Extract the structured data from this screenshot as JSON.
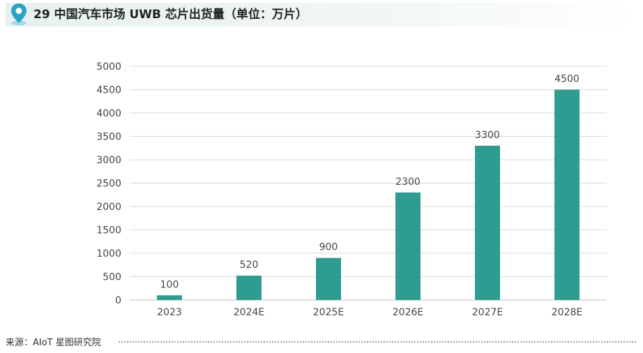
{
  "header": {
    "title": "29 中国汽车市场 UWB 芯片出货量（单位：万片）",
    "accent_color": "#2aa3c8",
    "icon": "location-pin-icon"
  },
  "chart_data": {
    "type": "bar",
    "title": "29 中国汽车市场 UWB 芯片出货量（单位：万片）",
    "categories": [
      "2023",
      "2024E",
      "2025E",
      "2026E",
      "2027E",
      "2028E"
    ],
    "values": [
      100,
      520,
      900,
      2300,
      3300,
      4500
    ],
    "data_labels": [
      "100",
      "520",
      "900",
      "2300",
      "3300",
      "4500"
    ],
    "yticks": [
      0,
      500,
      1000,
      1500,
      2000,
      2500,
      3000,
      3500,
      4000,
      4500,
      5000
    ],
    "ylim": [
      0,
      5000
    ],
    "xlabel": "",
    "ylabel": "",
    "grid": true,
    "legend": "none",
    "bar_color": "#2e9c8f"
  },
  "footer": {
    "source": "来源：AIoT 星图研究院"
  }
}
